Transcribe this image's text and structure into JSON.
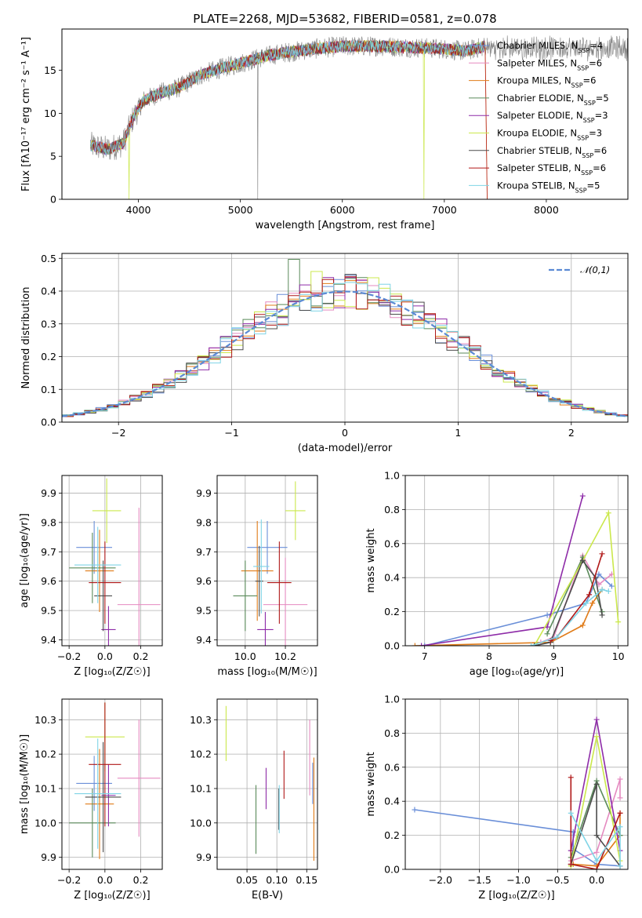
{
  "figure": {
    "title": "PLATE=2268, MJD=53682, FIBERID=0581, z=0.078"
  },
  "colors": {
    "Chabrier MILES": "#6a8fd8",
    "Salpeter MILES": "#e58ac0",
    "Kroupa MILES": "#e07b18",
    "Chabrier ELODIE": "#5a8a5a",
    "Salpeter ELODIE": "#8e2ca8",
    "Kroupa ELODIE": "#cbe84c",
    "Chabrier STELIB": "#4c4c4c",
    "Salpeter STELIB": "#b01818",
    "Kroupa STELIB": "#7fd4e6",
    "data": "#808080",
    "normal": "#5b8ad4"
  },
  "chart_data": [
    {
      "id": "spectrum",
      "type": "line",
      "title": "PLATE=2268, MJD=53682, FIBERID=0581, z=0.078",
      "xlabel": "wavelength [Angstrom, rest frame]",
      "ylabel": "Flux [fλ10⁻¹⁷ erg cm⁻² s⁻¹ A⁻¹]",
      "xlim": [
        3250,
        8800
      ],
      "ylim": [
        0,
        19.8
      ],
      "xticks": [
        4000,
        5000,
        6000,
        7000,
        8000
      ],
      "yticks": [
        0,
        5,
        10,
        15
      ],
      "legend": {
        "placement": "right",
        "entries": [
          {
            "name": "Chabrier MILES",
            "nssp": "4"
          },
          {
            "name": "Salpeter MILES",
            "nssp": "6"
          },
          {
            "name": "Kroupa MILES",
            "nssp": "6"
          },
          {
            "name": "Chabrier ELODIE",
            "nssp": "5"
          },
          {
            "name": "Salpeter ELODIE",
            "nssp": "3"
          },
          {
            "name": "Kroupa ELODIE",
            "nssp": "3"
          },
          {
            "name": "Chabrier STELIB",
            "nssp": "6"
          },
          {
            "name": "Salpeter STELIB",
            "nssp": "6"
          },
          {
            "name": "Kroupa STELIB",
            "nssp": "5"
          }
        ]
      },
      "continuum": {
        "x": [
          3530,
          3700,
          3850,
          3950,
          4050,
          4200,
          4400,
          4600,
          4800,
          5000,
          5200,
          5400,
          5600,
          5800,
          6000,
          6200,
          6400,
          6600,
          6800,
          7000,
          7200,
          7400
        ],
        "y": [
          6.3,
          5.8,
          6.5,
          9.5,
          11.5,
          12.3,
          13.0,
          14.4,
          15.2,
          15.8,
          16.5,
          17.0,
          17.3,
          17.6,
          17.8,
          17.8,
          17.8,
          17.7,
          17.6,
          17.5,
          17.2,
          17.8
        ]
      },
      "observed_range": [
        3530,
        8800
      ]
    },
    {
      "id": "residuals",
      "type": "line",
      "xlabel": "(data-model)/error",
      "ylabel": "Normed distribution",
      "xlim": [
        -2.5,
        2.5
      ],
      "ylim": [
        0,
        0.515
      ],
      "xticks": [
        -2,
        -1,
        0,
        1,
        2
      ],
      "yticks": [
        0.0,
        0.1,
        0.2,
        0.3,
        0.4,
        0.5
      ],
      "grid": true,
      "legend": {
        "placement": "top-right",
        "entries": [
          {
            "name": "𝒩(0,1)"
          }
        ]
      }
    },
    {
      "id": "age_vs_Z",
      "type": "scatter",
      "xlabel": "Z [log₁₀(Z/Z☉)]",
      "ylabel": "age [log₁₀(age/yr)]",
      "xlim": [
        -0.24,
        0.32
      ],
      "ylim": [
        9.38,
        9.96
      ],
      "xticks": [
        -0.2,
        0.0,
        0.2
      ],
      "yticks": [
        9.4,
        9.5,
        9.6,
        9.7,
        9.8,
        9.9
      ],
      "grid": true,
      "points": [
        {
          "series": "Chabrier MILES",
          "x": -0.06,
          "xerr": 0.1,
          "y": 9.715,
          "yerr": 0.09
        },
        {
          "series": "Salpeter MILES",
          "x": 0.19,
          "xerr": 0.12,
          "y": 9.52,
          "yerr": 0.33
        },
        {
          "series": "Kroupa MILES",
          "x": -0.03,
          "xerr": 0.08,
          "y": 9.635,
          "yerr": 0.14
        },
        {
          "series": "Chabrier ELODIE",
          "x": -0.07,
          "xerr": 0.13,
          "y": 9.645,
          "yerr": 0.12
        },
        {
          "series": "Salpeter ELODIE",
          "x": 0.02,
          "xerr": 0.04,
          "y": 9.435,
          "yerr": 0.08
        },
        {
          "series": "Kroupa ELODIE",
          "x": 0.01,
          "xerr": 0.08,
          "y": 9.84,
          "yerr": 0.11
        },
        {
          "series": "Chabrier STELIB",
          "x": -0.01,
          "xerr": 0.05,
          "y": 9.55,
          "yerr": 0.12
        },
        {
          "series": "Salpeter STELIB",
          "x": 0.0,
          "xerr": 0.09,
          "y": 9.595,
          "yerr": 0.14
        },
        {
          "series": "Kroupa STELIB",
          "x": -0.04,
          "xerr": 0.13,
          "y": 9.655,
          "yerr": 0.13
        }
      ]
    },
    {
      "id": "age_vs_mass",
      "type": "scatter",
      "xlabel": "mass [log₁₀(M/M☉)]",
      "ylabel": "",
      "xlim": [
        9.86,
        10.36
      ],
      "ylim": [
        9.38,
        9.96
      ],
      "xticks": [
        10.0,
        10.2
      ],
      "yticks": [
        9.4,
        9.5,
        9.6,
        9.7,
        9.8,
        9.9
      ],
      "grid": true,
      "points": [
        {
          "series": "Chabrier MILES",
          "x": 10.11,
          "xerr": 0.1,
          "y": 9.715,
          "yerr": 0.09
        },
        {
          "series": "Salpeter MILES",
          "x": 10.2,
          "xerr": 0.11,
          "y": 9.52,
          "yerr": 0.16
        },
        {
          "series": "Kroupa MILES",
          "x": 10.06,
          "xerr": 0.08,
          "y": 9.635,
          "yerr": 0.17
        },
        {
          "series": "Chabrier ELODIE",
          "x": 10.0,
          "xerr": 0.06,
          "y": 9.55,
          "yerr": 0.12
        },
        {
          "series": "Salpeter ELODIE",
          "x": 10.1,
          "xerr": 0.04,
          "y": 9.435,
          "yerr": 0.06
        },
        {
          "series": "Kroupa ELODIE",
          "x": 10.25,
          "xerr": 0.05,
          "y": 9.84,
          "yerr": 0.1
        },
        {
          "series": "Chabrier STELIB",
          "x": 10.07,
          "xerr": 0.02,
          "y": 9.6,
          "yerr": 0.12
        },
        {
          "series": "Salpeter STELIB",
          "x": 10.17,
          "xerr": 0.06,
          "y": 9.595,
          "yerr": 0.14
        },
        {
          "series": "Kroupa STELIB",
          "x": 10.08,
          "xerr": 0.04,
          "y": 9.65,
          "yerr": 0.16
        }
      ]
    },
    {
      "id": "weight_vs_age",
      "type": "line",
      "xlabel": "age [log₁₀(age/yr)]",
      "ylabel": "mass weight",
      "xlim": [
        6.7,
        10.15
      ],
      "ylim": [
        0.0,
        1.0
      ],
      "xticks": [
        7,
        8,
        9,
        10
      ],
      "yticks": [
        0.0,
        0.2,
        0.4,
        0.6,
        0.8,
        1.0
      ],
      "grid": true,
      "series": [
        {
          "name": "Chabrier MILES",
          "x": [
            7.0,
            8.9,
            9.5,
            9.7,
            9.9
          ],
          "y": [
            0.0,
            0.18,
            0.25,
            0.42,
            0.35
          ]
        },
        {
          "name": "Salpeter MILES",
          "x": [
            8.8,
            9.0,
            9.45,
            9.7,
            9.9
          ],
          "y": [
            0.02,
            0.05,
            0.53,
            0.36,
            0.42
          ]
        },
        {
          "name": "Kroupa MILES",
          "x": [
            6.85,
            8.95,
            9.45,
            9.6,
            9.75
          ],
          "y": [
            0.0,
            0.02,
            0.12,
            0.25,
            0.33
          ]
        },
        {
          "name": "Chabrier ELODIE",
          "x": [
            8.9,
            9.45,
            9.75
          ],
          "y": [
            0.07,
            0.52,
            0.2
          ]
        },
        {
          "name": "Salpeter ELODIE",
          "x": [
            6.95,
            8.9,
            9.45
          ],
          "y": [
            0.0,
            0.11,
            0.88
          ]
        },
        {
          "name": "Kroupa ELODIE",
          "x": [
            8.7,
            9.45,
            9.85,
            10.0
          ],
          "y": [
            0.0,
            0.5,
            0.78,
            0.14
          ]
        },
        {
          "name": "Chabrier STELIB",
          "x": [
            8.7,
            8.95,
            9.45,
            9.65,
            9.75
          ],
          "y": [
            0.0,
            0.02,
            0.5,
            0.4,
            0.18
          ]
        },
        {
          "name": "Salpeter STELIB",
          "x": [
            8.95,
            9.05,
            9.55,
            9.75
          ],
          "y": [
            0.03,
            0.05,
            0.3,
            0.54
          ]
        },
        {
          "name": "Kroupa STELIB",
          "x": [
            8.65,
            9.05,
            9.5,
            9.75,
            9.85
          ],
          "y": [
            0.0,
            0.05,
            0.25,
            0.33,
            0.32
          ]
        }
      ]
    },
    {
      "id": "mass_vs_Z",
      "type": "scatter",
      "xlabel": "Z [log₁₀(Z/Z☉)]",
      "ylabel": "mass [log₁₀(M/M☉)]",
      "xlim": [
        -0.24,
        0.32
      ],
      "ylim": [
        9.865,
        10.36
      ],
      "xticks": [
        -0.2,
        0.0,
        0.2
      ],
      "yticks": [
        9.9,
        10.0,
        10.1,
        10.2,
        10.3
      ],
      "grid": true,
      "points": [
        {
          "series": "Chabrier MILES",
          "x": -0.06,
          "xerr": 0.1,
          "y": 10.115,
          "yerr": 0.08
        },
        {
          "series": "Salpeter MILES",
          "x": 0.19,
          "xerr": 0.12,
          "y": 10.13,
          "yerr": 0.17
        },
        {
          "series": "Kroupa MILES",
          "x": -0.03,
          "xerr": 0.08,
          "y": 10.055,
          "yerr": 0.16
        },
        {
          "series": "Chabrier ELODIE",
          "x": -0.07,
          "xerr": 0.13,
          "y": 10.0,
          "yerr": 0.1
        },
        {
          "series": "Salpeter ELODIE",
          "x": 0.02,
          "xerr": 0.04,
          "y": 10.08,
          "yerr": 0.09
        },
        {
          "series": "Kroupa ELODIE",
          "x": 0.0,
          "xerr": 0.11,
          "y": 10.25,
          "yerr": 0.1
        },
        {
          "series": "Chabrier STELIB",
          "x": -0.01,
          "xerr": 0.1,
          "y": 10.075,
          "yerr": 0.16
        },
        {
          "series": "Salpeter STELIB",
          "x": 0.0,
          "xerr": 0.09,
          "y": 10.17,
          "yerr": 0.18
        },
        {
          "series": "Kroupa STELIB",
          "x": -0.04,
          "xerr": 0.13,
          "y": 10.085,
          "yerr": 0.16
        }
      ]
    },
    {
      "id": "mass_vs_EBV",
      "type": "scatter",
      "xlabel": "E(B-V)",
      "ylabel": "",
      "xlim": [
        0.0,
        0.168
      ],
      "ylim": [
        9.865,
        10.36
      ],
      "xticks": [
        0.05,
        0.1,
        0.15
      ],
      "yticks": [
        9.9,
        10.0,
        10.1,
        10.2,
        10.3
      ],
      "grid": true,
      "points": [
        {
          "series": "Chabrier MILES",
          "x": 0.16,
          "y": 10.115,
          "yerr": 0.06
        },
        {
          "series": "Salpeter MILES",
          "x": 0.155,
          "y": 10.19,
          "yerr": 0.11
        },
        {
          "series": "Kroupa MILES",
          "x": 0.162,
          "y": 10.04,
          "yerr": 0.15
        },
        {
          "series": "Chabrier ELODIE",
          "x": 0.065,
          "y": 10.01,
          "yerr": 0.1
        },
        {
          "series": "Salpeter ELODIE",
          "x": 0.082,
          "y": 10.1,
          "yerr": 0.06
        },
        {
          "series": "Kroupa ELODIE",
          "x": 0.015,
          "y": 10.26,
          "yerr": 0.08
        },
        {
          "series": "Chabrier STELIB",
          "x": 0.103,
          "y": 10.04,
          "yerr": 0.06
        },
        {
          "series": "Salpeter STELIB",
          "x": 0.112,
          "y": 10.14,
          "yerr": 0.07
        },
        {
          "series": "Kroupa STELIB",
          "x": 0.104,
          "y": 10.04,
          "yerr": 0.07
        }
      ]
    },
    {
      "id": "weight_vs_Z",
      "type": "line",
      "xlabel": "Z [log₁₀(Z/Z☉)]",
      "ylabel": "mass weight",
      "xlim": [
        -2.45,
        0.4
      ],
      "ylim": [
        0.0,
        1.0
      ],
      "xticks": [
        -2.0,
        -1.5,
        -1.0,
        -0.5,
        0.0
      ],
      "yticks": [
        0.0,
        0.2,
        0.4,
        0.6,
        0.8,
        1.0
      ],
      "grid": true,
      "series": [
        {
          "name": "Chabrier MILES",
          "x": [
            -2.33,
            -0.3,
            -0.3,
            0.0,
            0.3
          ],
          "y": [
            0.35,
            0.22,
            0.12,
            0.03,
            0.02
          ]
        },
        {
          "name": "Salpeter MILES",
          "x": [
            -0.33,
            0.0,
            0.3,
            0.3
          ],
          "y": [
            0.05,
            0.1,
            0.53,
            0.42
          ]
        },
        {
          "name": "Kroupa MILES",
          "x": [
            -0.3,
            0.0,
            0.3,
            0.3
          ],
          "y": [
            0.03,
            0.02,
            0.2,
            0.33
          ]
        },
        {
          "name": "Chabrier ELODIE",
          "x": [
            -0.33,
            0.0,
            0.3
          ],
          "y": [
            0.07,
            0.52,
            0.2
          ]
        },
        {
          "name": "Salpeter ELODIE",
          "x": [
            -0.33,
            0.0,
            0.3
          ],
          "y": [
            0.11,
            0.88,
            0.11
          ]
        },
        {
          "name": "Kroupa ELODIE",
          "x": [
            -0.33,
            0.0,
            0.3
          ],
          "y": [
            0.02,
            0.78,
            0.05
          ]
        },
        {
          "name": "Chabrier STELIB",
          "x": [
            -0.33,
            0.0,
            0.0,
            0.3
          ],
          "y": [
            0.03,
            0.5,
            0.2,
            0.02
          ]
        },
        {
          "name": "Salpeter STELIB",
          "x": [
            -0.33,
            -0.33,
            0.0,
            0.3
          ],
          "y": [
            0.54,
            0.03,
            0.0,
            0.33
          ]
        },
        {
          "name": "Kroupa STELIB",
          "x": [
            -0.33,
            0.0,
            0.3,
            0.3
          ],
          "y": [
            0.33,
            0.05,
            0.25,
            0.02
          ]
        }
      ]
    }
  ]
}
